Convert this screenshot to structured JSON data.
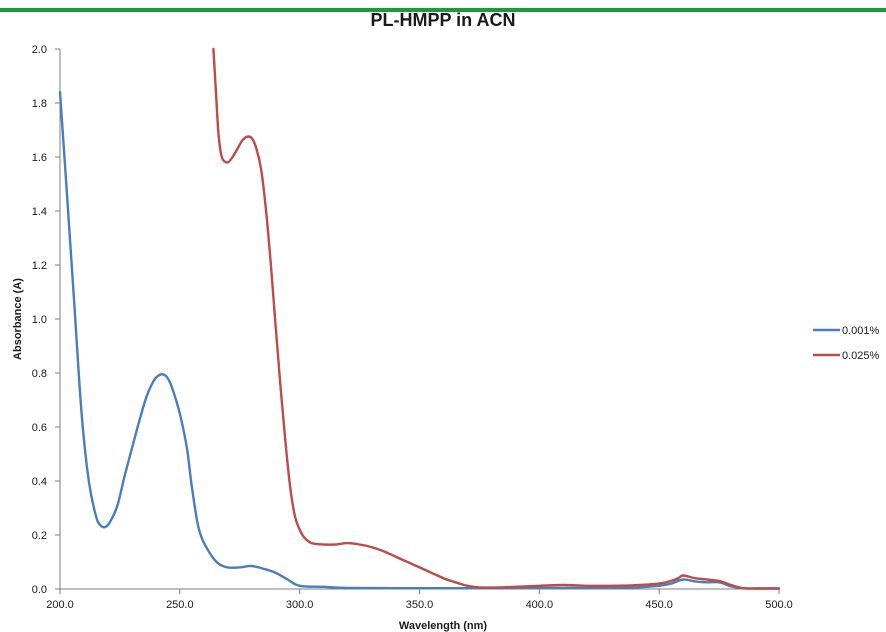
{
  "chart_data": {
    "type": "line",
    "title": "PL-HMPP in ACN",
    "xlabel": "Wavelength (nm)",
    "ylabel": "Absorbance (A)",
    "xlim": [
      200,
      500
    ],
    "ylim": [
      0,
      2.0
    ],
    "x_ticks": [
      "200.0",
      "250.0",
      "300.0",
      "350.0",
      "400.0",
      "450.0",
      "500.0"
    ],
    "y_ticks": [
      "0.0",
      "0.2",
      "0.4",
      "0.6",
      "0.8",
      "1.0",
      "1.2",
      "1.4",
      "1.6",
      "1.8",
      "2.0"
    ],
    "grid": false,
    "legend_position": "right",
    "series": [
      {
        "name": "0.001%",
        "color": "#4a7ebb",
        "x": [
          200,
          203,
          206,
          209,
          212,
          215,
          217,
          219,
          221,
          224,
          227,
          230,
          233,
          236,
          239,
          241,
          243,
          245,
          247,
          250,
          253,
          255,
          258,
          262,
          266,
          270,
          275,
          280,
          285,
          290,
          295,
          300,
          310,
          320,
          340,
          360,
          380,
          400,
          420,
          440,
          450,
          455,
          460,
          465,
          470,
          475,
          480,
          485,
          490,
          500
        ],
        "y": [
          1.84,
          1.45,
          1.05,
          0.65,
          0.4,
          0.27,
          0.235,
          0.23,
          0.25,
          0.31,
          0.42,
          0.52,
          0.62,
          0.71,
          0.77,
          0.79,
          0.795,
          0.78,
          0.74,
          0.65,
          0.52,
          0.38,
          0.22,
          0.14,
          0.095,
          0.08,
          0.08,
          0.085,
          0.075,
          0.06,
          0.035,
          0.012,
          0.008,
          0.004,
          0.003,
          0.003,
          0.003,
          0.004,
          0.004,
          0.006,
          0.012,
          0.02,
          0.035,
          0.028,
          0.025,
          0.025,
          0.01,
          0.003,
          0.002,
          0.002
        ]
      },
      {
        "name": "0.025%",
        "color": "#be4b48",
        "x": [
          264,
          265,
          266,
          267,
          268,
          270,
          272,
          274,
          276,
          278,
          280,
          282,
          284,
          286,
          288,
          290,
          292,
          294,
          296,
          298,
          300,
          302,
          305,
          310,
          315,
          320,
          325,
          330,
          335,
          340,
          345,
          350,
          355,
          360,
          365,
          370,
          375,
          380,
          390,
          400,
          410,
          420,
          430,
          440,
          450,
          455,
          458,
          460,
          465,
          470,
          475,
          480,
          485,
          490,
          500
        ],
        "y": [
          2.0,
          1.85,
          1.7,
          1.62,
          1.59,
          1.58,
          1.6,
          1.63,
          1.66,
          1.675,
          1.67,
          1.63,
          1.55,
          1.4,
          1.2,
          0.97,
          0.75,
          0.55,
          0.38,
          0.27,
          0.22,
          0.19,
          0.17,
          0.165,
          0.165,
          0.17,
          0.165,
          0.155,
          0.14,
          0.12,
          0.1,
          0.08,
          0.06,
          0.04,
          0.025,
          0.012,
          0.006,
          0.005,
          0.008,
          0.012,
          0.015,
          0.012,
          0.012,
          0.014,
          0.02,
          0.03,
          0.04,
          0.05,
          0.04,
          0.035,
          0.03,
          0.015,
          0.003,
          0.002,
          0.002
        ]
      }
    ]
  }
}
